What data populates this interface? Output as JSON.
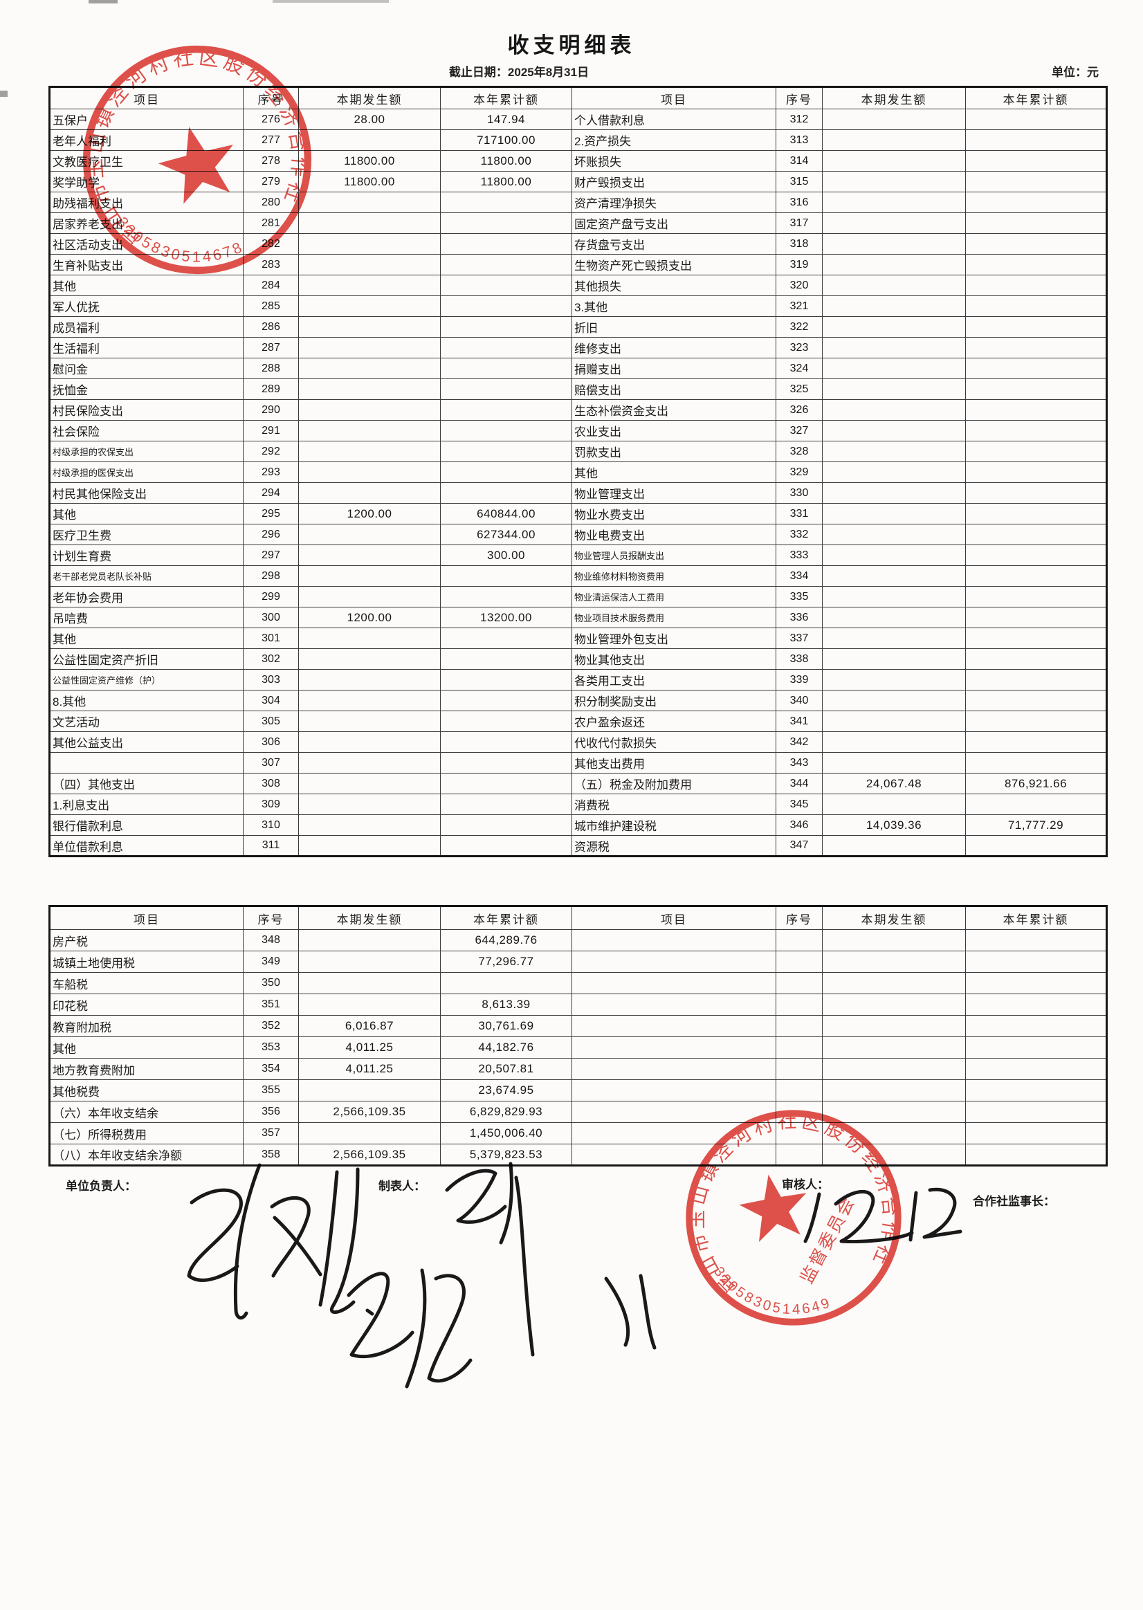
{
  "title": "收支明细表",
  "meta": {
    "cutoff_label": "截止日期：2025年8月31日",
    "unit_label": "单位：元"
  },
  "table1": {
    "headers": [
      "项目",
      "序号",
      "本期发生额",
      "本年累计额",
      "项目",
      "序号",
      "本期发生额",
      "本年累计额"
    ],
    "rows": [
      {
        "l": [
          "五保户",
          "276",
          "28.00",
          "147.94"
        ],
        "li": 2,
        "r": [
          "个人借款利息",
          "312",
          "",
          ""
        ],
        "ri": 2
      },
      {
        "l": [
          "老年人福利",
          "277",
          "",
          "717100.00"
        ],
        "li": 2,
        "r": [
          "2.资产损失",
          "313",
          "",
          ""
        ],
        "ri": 1
      },
      {
        "l": [
          "文教医疗卫生",
          "278",
          "11800.00",
          "11800.00"
        ],
        "li": 2,
        "r": [
          "坏账损失",
          "314",
          "",
          ""
        ],
        "ri": 2
      },
      {
        "l": [
          "奖学助学",
          "279",
          "11800.00",
          "11800.00"
        ],
        "li": 3,
        "r": [
          "财产毁损支出",
          "315",
          "",
          ""
        ],
        "ri": 2
      },
      {
        "l": [
          "助残福利支出",
          "280",
          "",
          ""
        ],
        "li": 3,
        "r": [
          "资产清理净损失",
          "316",
          "",
          ""
        ],
        "ri": 2
      },
      {
        "l": [
          "居家养老支出",
          "281",
          "",
          ""
        ],
        "li": 3,
        "r": [
          "固定资产盘亏支出",
          "317",
          "",
          ""
        ],
        "ri": 2
      },
      {
        "l": [
          "社区活动支出",
          "282",
          "",
          ""
        ],
        "li": 3,
        "r": [
          "存货盘亏支出",
          "318",
          "",
          ""
        ],
        "ri": 2
      },
      {
        "l": [
          "生育补贴支出",
          "283",
          "",
          ""
        ],
        "li": 3,
        "r": [
          "生物资产死亡毁损支出",
          "319",
          "",
          ""
        ],
        "ri": 2
      },
      {
        "l": [
          "其他",
          "284",
          "",
          ""
        ],
        "li": 3,
        "r": [
          "其他损失",
          "320",
          "",
          ""
        ],
        "ri": 2
      },
      {
        "l": [
          "军人优抚",
          "285",
          "",
          ""
        ],
        "li": 2,
        "r": [
          "3.其他",
          "321",
          "",
          ""
        ],
        "ri": 1
      },
      {
        "l": [
          "成员福利",
          "286",
          "",
          ""
        ],
        "li": 2,
        "r": [
          "折旧",
          "322",
          "",
          ""
        ],
        "ri": 2
      },
      {
        "l": [
          "生活福利",
          "287",
          "",
          ""
        ],
        "li": 3,
        "r": [
          "维修支出",
          "323",
          "",
          ""
        ],
        "ri": 2
      },
      {
        "l": [
          "慰问金",
          "288",
          "",
          ""
        ],
        "li": 3,
        "r": [
          "捐赠支出",
          "324",
          "",
          ""
        ],
        "ri": 2
      },
      {
        "l": [
          "抚恤金",
          "289",
          "",
          ""
        ],
        "li": 3,
        "r": [
          "赔偿支出",
          "325",
          "",
          ""
        ],
        "ri": 2
      },
      {
        "l": [
          "村民保险支出",
          "290",
          "",
          ""
        ],
        "li": 3,
        "r": [
          "生态补偿资金支出",
          "326",
          "",
          ""
        ],
        "ri": 2
      },
      {
        "l": [
          "社会保险",
          "291",
          "",
          ""
        ],
        "li": 4,
        "r": [
          "农业支出",
          "327",
          "",
          ""
        ],
        "ri": 2
      },
      {
        "l": [
          "村级承担的农保支出",
          "292",
          "",
          ""
        ],
        "li": 4,
        "ls": true,
        "r": [
          "罚款支出",
          "328",
          "",
          ""
        ],
        "ri": 2
      },
      {
        "l": [
          "村级承担的医保支出",
          "293",
          "",
          ""
        ],
        "li": 4,
        "ls": true,
        "r": [
          "其他",
          "329",
          "",
          ""
        ],
        "ri": 2
      },
      {
        "l": [
          "村民其他保险支出",
          "294",
          "",
          ""
        ],
        "li": 4,
        "r": [
          "物业管理支出",
          "330",
          "",
          ""
        ],
        "ri": 3
      },
      {
        "l": [
          "其他",
          "295",
          "1200.00",
          "640844.00"
        ],
        "li": 2,
        "r": [
          "物业水费支出",
          "331",
          "",
          ""
        ],
        "ri": 4
      },
      {
        "l": [
          "医疗卫生费",
          "296",
          "",
          "627344.00"
        ],
        "li": 3,
        "r": [
          "物业电费支出",
          "332",
          "",
          ""
        ],
        "ri": 4
      },
      {
        "l": [
          "计划生育费",
          "297",
          "",
          "300.00"
        ],
        "li": 3,
        "r": [
          "物业管理人员报酬支出",
          "333",
          "",
          ""
        ],
        "ri": 4,
        "rs": true
      },
      {
        "l": [
          "老干部老党员老队长补贴",
          "298",
          "",
          ""
        ],
        "li": 3,
        "ls": true,
        "r": [
          "物业维修材料物资费用",
          "334",
          "",
          ""
        ],
        "ri": 4,
        "rs": true
      },
      {
        "l": [
          "老年协会费用",
          "299",
          "",
          ""
        ],
        "li": 3,
        "r": [
          "物业清运保洁人工费用",
          "335",
          "",
          ""
        ],
        "ri": 4,
        "rs": true
      },
      {
        "l": [
          "吊唁费",
          "300",
          "1200.00",
          "13200.00"
        ],
        "li": 3,
        "r": [
          "物业项目技术服务费用",
          "336",
          "",
          ""
        ],
        "ri": 4,
        "rs": true
      },
      {
        "l": [
          "其他",
          "301",
          "",
          ""
        ],
        "li": 3,
        "r": [
          "物业管理外包支出",
          "337",
          "",
          ""
        ],
        "ri": 4
      },
      {
        "l": [
          "公益性固定资产折旧",
          "302",
          "",
          ""
        ],
        "li": 2,
        "r": [
          "物业其他支出",
          "338",
          "",
          ""
        ],
        "ri": 4
      },
      {
        "l": [
          "公益性固定资产维修（护）",
          "303",
          "",
          ""
        ],
        "li": 2,
        "ls": true,
        "r": [
          "各类用工支出",
          "339",
          "",
          ""
        ],
        "ri": 3
      },
      {
        "l": [
          "8.其他",
          "304",
          "",
          ""
        ],
        "li": 1,
        "r": [
          "积分制奖励支出",
          "340",
          "",
          ""
        ],
        "ri": 3
      },
      {
        "l": [
          "文艺活动",
          "305",
          "",
          ""
        ],
        "li": 2,
        "r": [
          "农户盈余返还",
          "341",
          "",
          ""
        ],
        "ri": 3
      },
      {
        "l": [
          "其他公益支出",
          "306",
          "",
          ""
        ],
        "li": 2,
        "r": [
          "代收代付款损失",
          "342",
          "",
          ""
        ],
        "ri": 3
      },
      {
        "l": [
          "",
          "307",
          "",
          ""
        ],
        "li": 0,
        "r": [
          "其他支出费用",
          "343",
          "",
          ""
        ],
        "ri": 3
      },
      {
        "l": [
          "（四）其他支出",
          "308",
          "",
          ""
        ],
        "li": 0,
        "r": [
          "（五）税金及附加费用",
          "344",
          "24,067.48",
          "876,921.66"
        ],
        "ri": 0
      },
      {
        "l": [
          "1.利息支出",
          "309",
          "",
          ""
        ],
        "li": 1,
        "r": [
          "消费税",
          "345",
          "",
          ""
        ],
        "ri": 1
      },
      {
        "l": [
          "银行借款利息",
          "310",
          "",
          ""
        ],
        "li": 2,
        "r": [
          "城市维护建设税",
          "346",
          "14,039.36",
          "71,777.29"
        ],
        "ri": 1
      },
      {
        "l": [
          "单位借款利息",
          "311",
          "",
          ""
        ],
        "li": 2,
        "r": [
          "资源税",
          "347",
          "",
          ""
        ],
        "ri": 1
      }
    ]
  },
  "table2": {
    "headers": [
      "项目",
      "序号",
      "本期发生额",
      "本年累计额",
      "项目",
      "序号",
      "本期发生额",
      "本年累计额"
    ],
    "rows": [
      {
        "l": [
          "房产税",
          "348",
          "",
          "644,289.76"
        ],
        "li": 1,
        "r": [
          "",
          "",
          "",
          ""
        ],
        "ri": 0
      },
      {
        "l": [
          "城镇土地使用税",
          "349",
          "",
          "77,296.77"
        ],
        "li": 1,
        "r": [
          "",
          "",
          "",
          ""
        ],
        "ri": 0
      },
      {
        "l": [
          "车船税",
          "350",
          "",
          ""
        ],
        "li": 1,
        "r": [
          "",
          "",
          "",
          ""
        ],
        "ri": 0
      },
      {
        "l": [
          "印花税",
          "351",
          "",
          "8,613.39"
        ],
        "li": 1,
        "r": [
          "",
          "",
          "",
          ""
        ],
        "ri": 0
      },
      {
        "l": [
          "教育附加税",
          "352",
          "6,016.87",
          "30,761.69"
        ],
        "li": 1,
        "r": [
          "",
          "",
          "",
          ""
        ],
        "ri": 0
      },
      {
        "l": [
          "其他",
          "353",
          "4,011.25",
          "44,182.76"
        ],
        "li": 1,
        "r": [
          "",
          "",
          "",
          ""
        ],
        "ri": 0
      },
      {
        "l": [
          "地方教育费附加",
          "354",
          "4,011.25",
          "20,507.81"
        ],
        "li": 2,
        "r": [
          "",
          "",
          "",
          ""
        ],
        "ri": 0
      },
      {
        "l": [
          "其他税费",
          "355",
          "",
          "23,674.95"
        ],
        "li": 2,
        "r": [
          "",
          "",
          "",
          ""
        ],
        "ri": 0
      },
      {
        "l": [
          "（六）本年收支结余",
          "356",
          "2,566,109.35",
          "6,829,829.93"
        ],
        "li": 0,
        "r": [
          "",
          "",
          "",
          ""
        ],
        "ri": 0
      },
      {
        "l": [
          "（七）所得税费用",
          "357",
          "",
          "1,450,006.40"
        ],
        "li": 0,
        "r": [
          "",
          "",
          "",
          ""
        ],
        "ri": 0
      },
      {
        "l": [
          "（八）本年收支结余净额",
          "358",
          "2,566,109.35",
          "5,379,823.53"
        ],
        "li": 0,
        "r": [
          "",
          "",
          "",
          ""
        ],
        "ri": 0
      }
    ]
  },
  "footer": {
    "labels": [
      "单位负责人：",
      "制表人：",
      "审核人：",
      "合作社监事长："
    ]
  },
  "stamps": {
    "top": {
      "org_text": "昆山市玉山镇泾河村社区股份经济合作社",
      "number": "3205830514678"
    },
    "bottom": {
      "org_text": "昆山市玉山镇泾河村社区股份经济合作社",
      "number": "3205830514649",
      "inner_text": "监督委员会"
    }
  }
}
